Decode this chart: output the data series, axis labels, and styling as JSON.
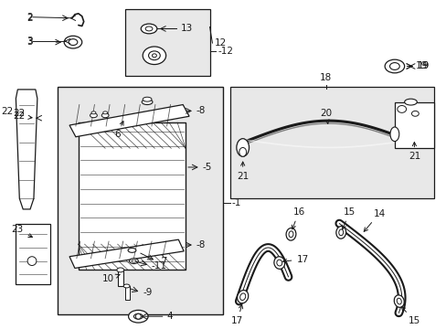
{
  "bg_color": "#ffffff",
  "line_color": "#1a1a1a",
  "fill_light": "#e8e8e8",
  "font_size": 7.5,
  "lw_main": 0.8,
  "lw_thick": 2.5
}
